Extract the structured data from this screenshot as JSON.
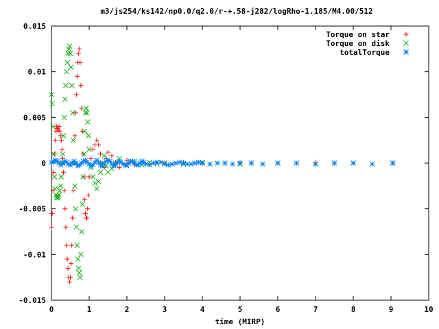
{
  "chart_data": {
    "type": "scatter",
    "title": "m3/js254/ks142/np0.0/q2.0/r-+.58-j282/logRho-1.185/M4.00/512",
    "xlabel": "time (MIRP)",
    "ylabel": "",
    "xlim": [
      0,
      10
    ],
    "ylim": [
      -0.015,
      0.015
    ],
    "xticks": [
      0,
      1,
      2,
      3,
      4,
      5,
      6,
      7,
      8,
      9,
      10
    ],
    "yticks": [
      -0.015,
      -0.01,
      -0.005,
      0,
      0.005,
      0.01,
      0.015
    ],
    "ytick_labels": [
      "-0.015",
      "-0.01",
      "-0.005",
      "0",
      "0.005",
      "0.01",
      "0.015"
    ],
    "grid": false,
    "legend_position": "top-right",
    "series": [
      {
        "name": "Torque on star",
        "marker": "+",
        "color": "#ff0000",
        "x": [
          0.0,
          0.02,
          0.04,
          0.06,
          0.08,
          0.1,
          0.12,
          0.14,
          0.16,
          0.18,
          0.2,
          0.22,
          0.24,
          0.26,
          0.28,
          0.3,
          0.32,
          0.34,
          0.36,
          0.38,
          0.4,
          0.42,
          0.44,
          0.46,
          0.48,
          0.5,
          0.52,
          0.54,
          0.56,
          0.58,
          0.6,
          0.62,
          0.64,
          0.66,
          0.68,
          0.7,
          0.72,
          0.74,
          0.76,
          0.78,
          0.8,
          0.82,
          0.84,
          0.86,
          0.88,
          0.9,
          0.92,
          0.94,
          0.96,
          0.98,
          1.0,
          1.05,
          1.1,
          1.15,
          1.2,
          1.25,
          1.3,
          1.35,
          1.4,
          1.45,
          1.5,
          1.6,
          1.7,
          1.8,
          2.0,
          2.2,
          2.4,
          2.6,
          2.8,
          3.0,
          3.5,
          4.0,
          5.0,
          6.0,
          7.0,
          8.0,
          9.05
        ],
        "y": [
          -0.007,
          -0.0055,
          -0.003,
          -0.001,
          0.001,
          0.0025,
          0.0035,
          0.004,
          0.0038,
          0.0036,
          0.004,
          0.0035,
          0.003,
          0.0025,
          0.0015,
          0.0005,
          -0.001,
          -0.003,
          -0.005,
          -0.007,
          -0.009,
          -0.0105,
          -0.0115,
          -0.0125,
          -0.013,
          -0.0125,
          -0.011,
          -0.009,
          -0.006,
          -0.003,
          0.0,
          0.003,
          0.0055,
          0.0075,
          0.0095,
          0.011,
          0.012,
          0.0125,
          0.011,
          0.0085,
          0.006,
          0.0035,
          0.001,
          -0.0015,
          -0.004,
          -0.0055,
          -0.006,
          -0.006,
          -0.005,
          -0.0035,
          -0.0015,
          0.0005,
          0.0015,
          0.002,
          0.0025,
          0.002,
          0.001,
          0.0,
          -0.0005,
          0.0005,
          0.0012,
          0.0008,
          0.0,
          -0.0005,
          0.0003,
          -0.0002,
          0.0002,
          -0.0001,
          0.0001,
          0.0,
          0.0001,
          -0.0001,
          0.0001,
          0.0,
          0.0001,
          0.0,
          0.0
        ]
      },
      {
        "name": "Torque on disk",
        "marker": "x",
        "color": "#00b000",
        "x": [
          0.0,
          0.02,
          0.04,
          0.06,
          0.08,
          0.1,
          0.12,
          0.14,
          0.16,
          0.18,
          0.2,
          0.22,
          0.24,
          0.26,
          0.28,
          0.3,
          0.32,
          0.34,
          0.36,
          0.38,
          0.4,
          0.42,
          0.44,
          0.46,
          0.48,
          0.5,
          0.52,
          0.54,
          0.56,
          0.58,
          0.6,
          0.62,
          0.64,
          0.66,
          0.68,
          0.7,
          0.72,
          0.74,
          0.76,
          0.78,
          0.8,
          0.82,
          0.84,
          0.86,
          0.88,
          0.9,
          0.92,
          0.94,
          0.96,
          0.98,
          1.0,
          1.05,
          1.1,
          1.15,
          1.2,
          1.25,
          1.3,
          1.35,
          1.4,
          1.45,
          1.5,
          1.6,
          1.7,
          1.8,
          2.0,
          2.2,
          2.4,
          2.6,
          2.8,
          3.0,
          3.5,
          4.0,
          5.0,
          6.0,
          7.0,
          8.0,
          9.05
        ],
        "y": [
          0.0075,
          0.0065,
          0.004,
          0.001,
          -0.0015,
          -0.0028,
          -0.0035,
          -0.0038,
          -0.0036,
          -0.0038,
          -0.0035,
          -0.003,
          -0.0025,
          -0.0015,
          0.0,
          0.001,
          0.003,
          0.005,
          0.007,
          0.0085,
          0.01,
          0.011,
          0.012,
          0.0125,
          0.0128,
          0.012,
          0.0105,
          0.0085,
          0.0055,
          0.0025,
          0.0,
          -0.0025,
          -0.005,
          -0.007,
          -0.009,
          -0.0105,
          -0.0115,
          -0.012,
          -0.0125,
          -0.01,
          -0.0075,
          -0.0045,
          -0.0015,
          0.001,
          0.0035,
          0.0055,
          0.006,
          0.0055,
          0.0045,
          0.003,
          0.0015,
          -0.0005,
          -0.0015,
          -0.0022,
          -0.0028,
          -0.002,
          -0.001,
          0.0,
          0.0008,
          -0.0003,
          -0.001,
          -0.0006,
          0.0,
          0.0005,
          -0.0003,
          0.0002,
          -0.0002,
          0.0001,
          -0.0001,
          0.0,
          -0.0001,
          0.0001,
          -0.0001,
          0.0,
          -0.0001,
          0.0,
          0.0
        ]
      },
      {
        "name": "totalTorque",
        "marker": "*",
        "color": "#0080ff",
        "x": [
          0.0,
          0.05,
          0.1,
          0.15,
          0.2,
          0.25,
          0.3,
          0.35,
          0.4,
          0.45,
          0.5,
          0.55,
          0.6,
          0.65,
          0.7,
          0.75,
          0.8,
          0.85,
          0.9,
          0.95,
          1.0,
          1.05,
          1.1,
          1.15,
          1.2,
          1.25,
          1.3,
          1.35,
          1.4,
          1.45,
          1.5,
          1.55,
          1.6,
          1.65,
          1.7,
          1.75,
          1.8,
          1.85,
          1.9,
          1.95,
          2.0,
          2.05,
          2.1,
          2.15,
          2.2,
          2.25,
          2.3,
          2.35,
          2.4,
          2.45,
          2.5,
          2.6,
          2.7,
          2.8,
          2.9,
          3.0,
          3.1,
          3.2,
          3.3,
          3.4,
          3.5,
          3.6,
          3.7,
          3.8,
          3.9,
          4.0,
          4.2,
          4.4,
          4.6,
          4.8,
          5.0,
          5.3,
          5.6,
          6.0,
          6.5,
          7.0,
          7.5,
          8.0,
          8.5,
          9.05
        ],
        "y": [
          0.0001,
          0.0002,
          0.0003,
          0.0002,
          0.0,
          -0.0002,
          0.0,
          0.0002,
          0.0001,
          -0.0001,
          -0.0002,
          0.0,
          0.0002,
          0.0,
          -0.0003,
          -0.0002,
          0.0,
          0.0002,
          0.0003,
          0.0001,
          -0.0001,
          -0.0003,
          -0.0002,
          0.0001,
          0.0003,
          0.0001,
          -0.0002,
          -0.0003,
          -0.0001,
          0.0002,
          0.0003,
          0.0002,
          -0.0001,
          -0.0003,
          -0.0002,
          0.0001,
          0.0002,
          0.0001,
          -0.0001,
          -0.0002,
          -0.0002,
          0.0,
          0.0002,
          0.0002,
          0.0,
          -0.0002,
          -0.0002,
          0.0,
          0.0002,
          0.0001,
          -0.0001,
          -0.0002,
          0.0,
          0.0001,
          0.0001,
          -0.0001,
          -0.0002,
          -0.0001,
          0.0,
          0.0001,
          0.0,
          -0.0001,
          -0.0001,
          0.0,
          0.0001,
          0.0,
          -0.0001,
          0.0,
          0.0,
          -0.0001,
          0.0,
          0.0,
          -0.0001,
          0.0,
          0.0,
          -0.0001,
          0.0,
          0.0,
          -0.0001,
          0.0
        ]
      }
    ]
  }
}
